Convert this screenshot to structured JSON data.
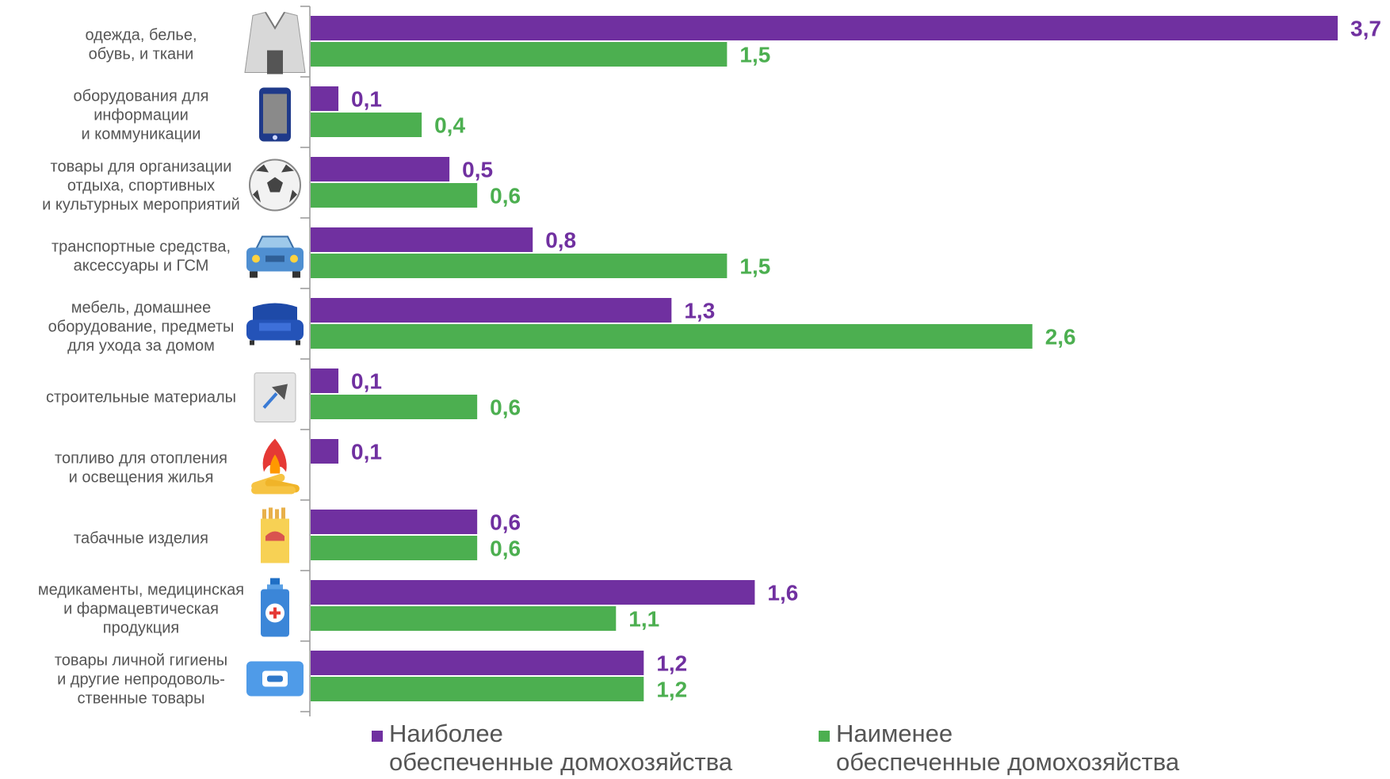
{
  "chart_data": {
    "type": "bar",
    "orientation": "horizontal",
    "title": "",
    "xlabel": "",
    "ylabel": "",
    "xlim": [
      0,
      3.7
    ],
    "grid": false,
    "legend_position": "bottom",
    "categories": [
      "одежда, белье,\nобувь, и ткани",
      "оборудования для\nинформации\nи коммуникации",
      "товары для организации\nотдыха, спортивных\nи культурных мероприятий",
      "транспортные средства,\nаксессуары и ГСМ",
      "мебель, домашнее\nоборудование, предметы\nдля ухода за домом",
      "строительные материалы",
      "топливо для отопления\nи освещения жилья",
      "табачные изделия",
      "медикаменты, медицинская\nи фармацевтическая\nпродукция",
      "товары личной гигиены\nи другие непродоволь-\nственные товары"
    ],
    "category_icons": [
      "clothing-icon",
      "smartphone-icon",
      "soccer-ball-icon",
      "car-icon",
      "sofa-icon",
      "trowel-bag-icon",
      "campfire-icon",
      "cigarette-pack-icon",
      "medicine-bottle-icon",
      "wet-wipes-icon"
    ],
    "series": [
      {
        "name": "Наиболее\nобеспеченные домохозяйства",
        "color": "#7030A0",
        "values": [
          3.7,
          0.1,
          0.5,
          0.8,
          1.3,
          0.1,
          0.1,
          0.6,
          1.6,
          1.2
        ],
        "labels": [
          "3,7",
          "0,1",
          "0,5",
          "0,8",
          "1,3",
          "0,1",
          "0,1",
          "0,6",
          "1,6",
          "1,2"
        ]
      },
      {
        "name": "Наименее\nобеспеченные домохозяйства",
        "color": "#4CAF50",
        "values": [
          1.5,
          0.4,
          0.6,
          1.5,
          2.6,
          0.6,
          null,
          0.6,
          1.1,
          1.2
        ],
        "labels": [
          "1,5",
          "0,4",
          "0,6",
          "1,5",
          "2,6",
          "0,6",
          "",
          "0,6",
          "1,1",
          "1,2"
        ]
      }
    ]
  }
}
